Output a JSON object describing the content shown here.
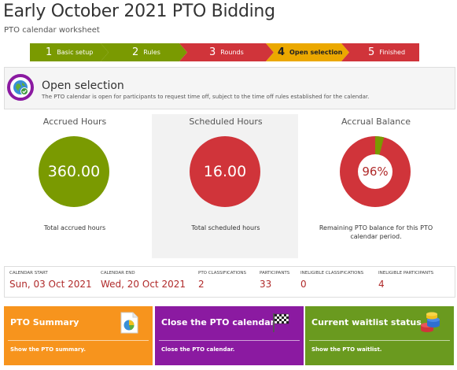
{
  "page": {
    "title": "Early October 2021 PTO Bidding",
    "subtitle": "PTO calendar worksheet"
  },
  "steps": [
    {
      "num": "1",
      "label": "Basic setup",
      "color": "#7a9a01"
    },
    {
      "num": "2",
      "label": "Rules",
      "color": "#7a9a01"
    },
    {
      "num": "3",
      "label": "Rounds",
      "color": "#d0343a"
    },
    {
      "num": "4",
      "label": "Open selection",
      "color": "#eba800",
      "active": true
    },
    {
      "num": "5",
      "label": "Finished",
      "color": "#d0343a"
    }
  ],
  "banner": {
    "title": "Open selection",
    "description": "The PTO calendar is open for participants to request time off, subject to the time off rules established for the calendar.",
    "icon": "globe-check-icon"
  },
  "kpis": {
    "accrued": {
      "label": "Accrued Hours",
      "value": "360.00",
      "note": "Total accrued hours",
      "color": "#7a9a01"
    },
    "scheduled": {
      "label": "Scheduled Hours",
      "value": "16.00",
      "note": "Total scheduled hours",
      "color": "#d0343a"
    },
    "balance": {
      "label": "Accrual Balance",
      "value": "96%",
      "percent": 96,
      "note": "Remaining PTO balance for this PTO calendar period.",
      "color_main": "#d0343a",
      "color_rest": "#7a9a01"
    }
  },
  "info": [
    {
      "label": "CALENDAR START",
      "value": "Sun, 03 Oct 2021"
    },
    {
      "label": "CALENDAR END",
      "value": "Wed, 20 Oct 2021"
    },
    {
      "label": "PTO CLASSIFICATIONS",
      "value": "2"
    },
    {
      "label": "PARTICIPANTS",
      "value": "33"
    },
    {
      "label": "INELIGIBLE CLASSIFICATIONS",
      "value": "0"
    },
    {
      "label": "INELIGIBLE PARTICIPANTS",
      "value": "4"
    }
  ],
  "cards": [
    {
      "title": "PTO Summary",
      "description": "Show the PTO summary.",
      "color": "#f7941d",
      "icon": "pie-chart-document-icon"
    },
    {
      "title": "Close the PTO calendar",
      "description": "Close the PTO calendar.",
      "color": "#8b1aa1",
      "icon": "checkered-flag-icon"
    },
    {
      "title": "Current waitlist status",
      "description": "Show the PTO waitlist.",
      "color": "#6a9a1f",
      "icon": "casino-chips-icon"
    }
  ]
}
